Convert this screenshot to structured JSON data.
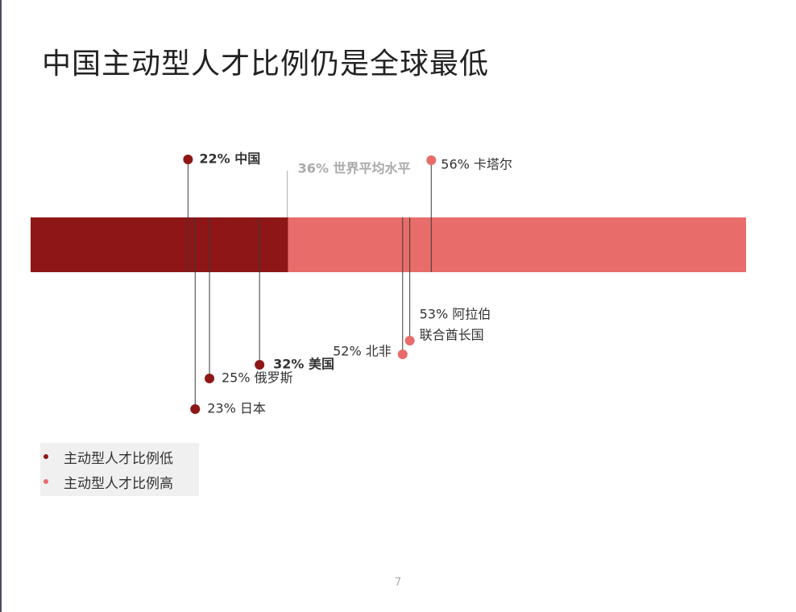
{
  "page": {
    "title": "中国主动型人才比例仍是全球最低",
    "page_number": "7"
  },
  "colors": {
    "low": "#8e1616",
    "high": "#e86c6a",
    "average": "#aaaaaa",
    "leader": "#3a3a3a"
  },
  "legend": [
    {
      "label": "主动型人才比例低",
      "color": "#8e1616"
    },
    {
      "label": "主动型人才比例高",
      "color": "#e86c6a"
    }
  ],
  "chart_data": {
    "type": "bar",
    "orientation": "horizontal",
    "xlim": [
      0,
      100
    ],
    "segments": [
      {
        "label": "主动型人才比例低",
        "from": 0,
        "to": 36,
        "color": "#8e1616"
      },
      {
        "label": "主动型人才比例高",
        "from": 36,
        "to": 100,
        "color": "#e86c6a"
      }
    ],
    "average": {
      "value": 36,
      "label": "36% 世界平均水平"
    },
    "points": [
      {
        "region": "中国",
        "value": 22,
        "text": "22% 中国",
        "group": "low",
        "bold": true,
        "side": "above"
      },
      {
        "region": "日本",
        "value": 23,
        "text": "23% 日本",
        "group": "low",
        "bold": false,
        "side": "below"
      },
      {
        "region": "俄罗斯",
        "value": 25,
        "text": "25% 俄罗斯",
        "group": "low",
        "bold": false,
        "side": "below"
      },
      {
        "region": "美国",
        "value": 32,
        "text": "32% 美国",
        "group": "low",
        "bold": true,
        "side": "below"
      },
      {
        "region": "北非",
        "value": 52,
        "text": "52% 北非",
        "group": "high",
        "bold": false,
        "side": "below"
      },
      {
        "region": "阿拉伯联合酋长国",
        "value": 53,
        "text": [
          "53% 阿拉伯",
          "联合酋长国"
        ],
        "group": "high",
        "bold": false,
        "side": "below"
      },
      {
        "region": "卡塔尔",
        "value": 56,
        "text": "56% 卡塔尔",
        "group": "high",
        "bold": false,
        "side": "above"
      }
    ]
  }
}
